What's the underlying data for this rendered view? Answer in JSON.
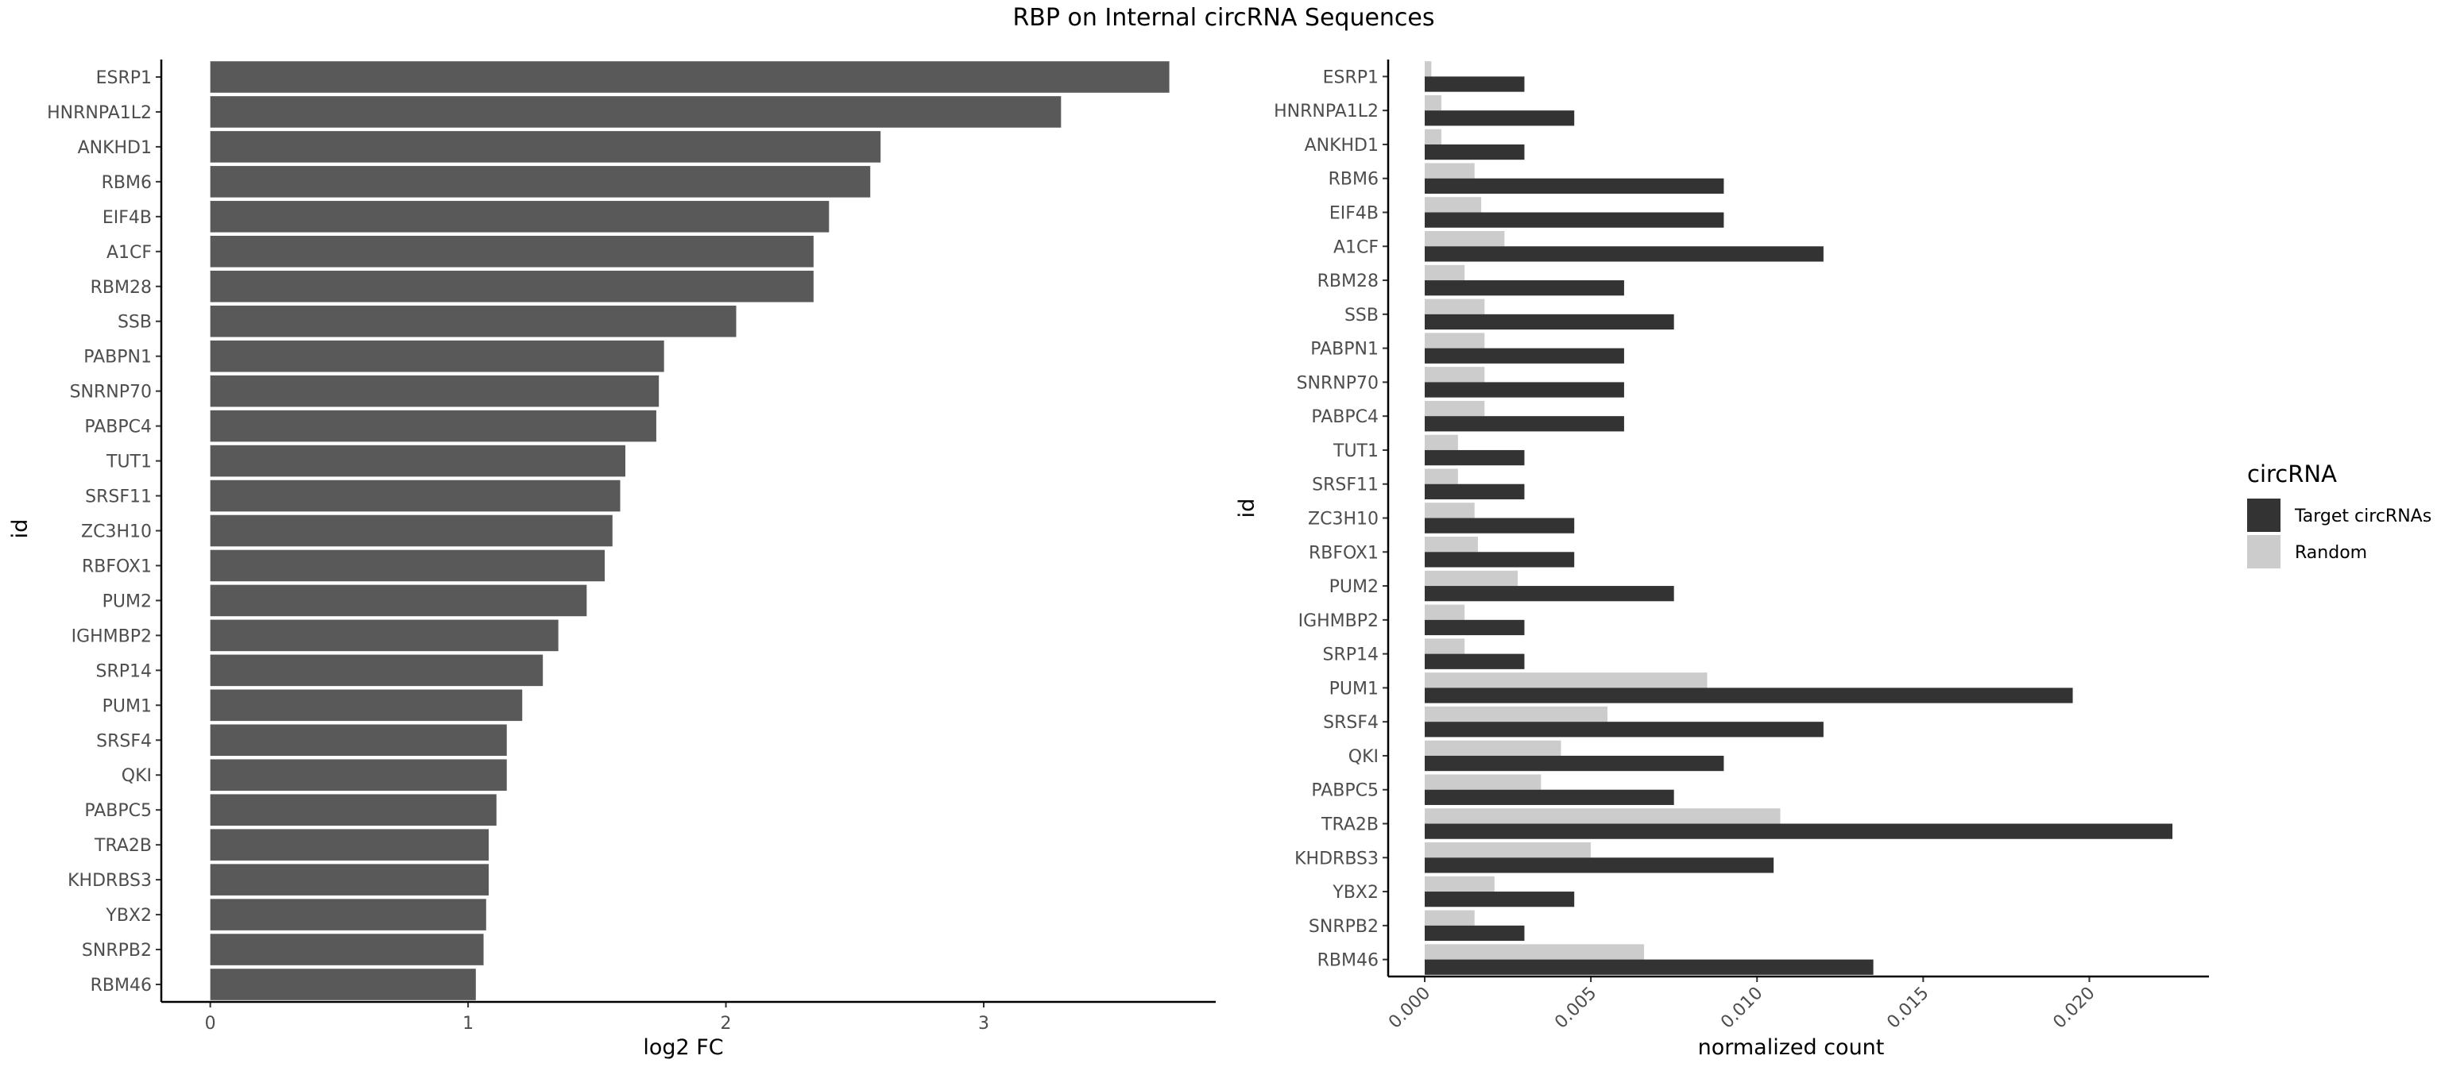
{
  "title": "RBP on Internal circRNA Sequences",
  "chart_data": [
    {
      "type": "bar",
      "orientation": "horizontal",
      "categories": [
        "ESRP1",
        "HNRNPA1L2",
        "ANKHD1",
        "RBM6",
        "EIF4B",
        "A1CF",
        "RBM28",
        "SSB",
        "PABPN1",
        "SNRNP70",
        "PABPC4",
        "TUT1",
        "SRSF11",
        "ZC3H10",
        "RBFOX1",
        "PUM2",
        "IGHMBP2",
        "SRP14",
        "PUM1",
        "SRSF4",
        "QKI",
        "PABPC5",
        "TRA2B",
        "KHDRBS3",
        "YBX2",
        "SNRPB2",
        "RBM46"
      ],
      "values": [
        3.72,
        3.3,
        2.6,
        2.56,
        2.4,
        2.34,
        2.34,
        2.04,
        1.76,
        1.74,
        1.73,
        1.61,
        1.59,
        1.56,
        1.53,
        1.46,
        1.35,
        1.29,
        1.21,
        1.15,
        1.15,
        1.11,
        1.08,
        1.08,
        1.07,
        1.06,
        1.03
      ],
      "xlabel": "log2 FC",
      "ylabel": "id",
      "xlim": [
        -0.19,
        3.9
      ],
      "xticks": [
        "0",
        "1",
        "2",
        "3"
      ],
      "grid": false,
      "bar_color": "#595959"
    },
    {
      "type": "bar",
      "orientation": "horizontal",
      "grouped": true,
      "categories": [
        "ESRP1",
        "HNRNPA1L2",
        "ANKHD1",
        "RBM6",
        "EIF4B",
        "A1CF",
        "RBM28",
        "SSB",
        "PABPN1",
        "SNRNP70",
        "PABPC4",
        "TUT1",
        "SRSF11",
        "ZC3H10",
        "RBFOX1",
        "PUM2",
        "IGHMBP2",
        "SRP14",
        "PUM1",
        "SRSF4",
        "QKI",
        "PABPC5",
        "TRA2B",
        "KHDRBS3",
        "YBX2",
        "SNRPB2",
        "RBM46"
      ],
      "series": [
        {
          "name": "Target circRNAs",
          "color": "#333333",
          "values": [
            0.003,
            0.0045,
            0.003,
            0.009,
            0.009,
            0.012,
            0.006,
            0.0075,
            0.006,
            0.006,
            0.006,
            0.003,
            0.003,
            0.0045,
            0.0045,
            0.0075,
            0.003,
            0.003,
            0.0195,
            0.012,
            0.009,
            0.0075,
            0.0225,
            0.0105,
            0.0045,
            0.003,
            0.0135
          ]
        },
        {
          "name": "Random",
          "color": "#cccccc",
          "values": [
            0.0002,
            0.0005,
            0.0005,
            0.0015,
            0.0017,
            0.0024,
            0.0012,
            0.0018,
            0.0018,
            0.0018,
            0.0018,
            0.001,
            0.001,
            0.0015,
            0.0016,
            0.0028,
            0.0012,
            0.0012,
            0.0085,
            0.0055,
            0.0041,
            0.0035,
            0.0107,
            0.005,
            0.0021,
            0.0015,
            0.0066
          ]
        }
      ],
      "xlabel": "normalized count",
      "ylabel": "id",
      "xlim": [
        -0.0011,
        0.0236
      ],
      "xticks": [
        "0.000",
        "0.005",
        "0.010",
        "0.015",
        "0.020"
      ],
      "grid": false,
      "legend": {
        "title": "circRNA",
        "position": "right"
      }
    }
  ]
}
